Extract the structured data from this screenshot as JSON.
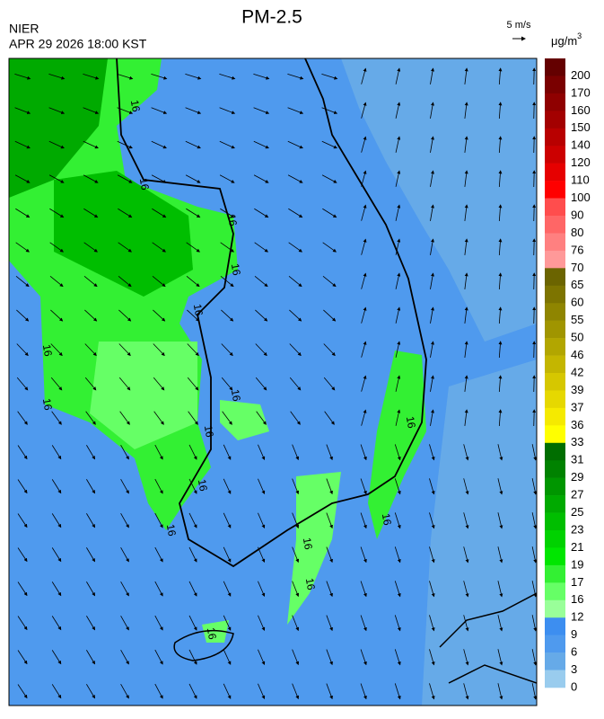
{
  "header": {
    "title": "PM-2.5",
    "agency": "NIER",
    "timestamp": "APR 29 2026 18:00 KST",
    "wind_scale": "5 m/s"
  },
  "colorbar": {
    "unit": "μg/m",
    "unit_power": "3",
    "labels": [
      "200",
      "170",
      "160",
      "150",
      "140",
      "120",
      "110",
      "100",
      "90",
      "80",
      "76",
      "70",
      "65",
      "60",
      "55",
      "50",
      "46",
      "42",
      "39",
      "37",
      "36",
      "33",
      "31",
      "29",
      "27",
      "25",
      "23",
      "21",
      "19",
      "17",
      "16",
      "12",
      "9",
      "6",
      "3",
      "0"
    ],
    "colors": [
      "#640000",
      "#7a0000",
      "#8f0000",
      "#a30000",
      "#b80000",
      "#cc0000",
      "#e60000",
      "#ff0000",
      "#ff4d4d",
      "#ff6666",
      "#ff8080",
      "#ff9999",
      "#6b6400",
      "#7d7400",
      "#8f8500",
      "#a09500",
      "#b2a600",
      "#c4b600",
      "#d6c700",
      "#e6d800",
      "#f5ea00",
      "#ffff00",
      "#006e00",
      "#008200",
      "#009600",
      "#00aa00",
      "#00be00",
      "#00d200",
      "#00e600",
      "#33f033",
      "#66ff66",
      "#99ff99",
      "#3d8ef0",
      "#4f9aee",
      "#66aae8",
      "#99ccee"
    ],
    "contour_labels": [
      "16",
      "16",
      "16",
      "16",
      "16",
      "16",
      "16",
      "16",
      "16",
      "16",
      "16",
      "16",
      "16",
      "16",
      "16",
      "16"
    ]
  }
}
